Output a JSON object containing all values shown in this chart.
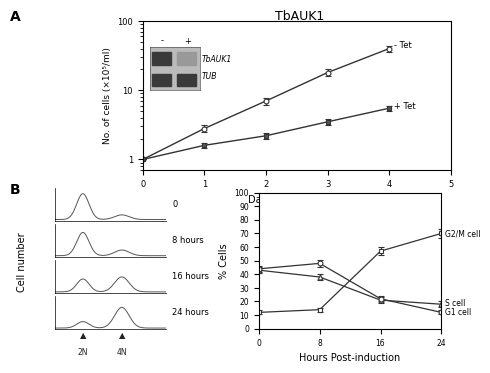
{
  "title_main": "TbAUK1",
  "panel_A_label": "A",
  "panel_B_label": "B",
  "growth_days": [
    0,
    1,
    2,
    3,
    4
  ],
  "growth_notet": [
    1.0,
    2.8,
    7.0,
    18.0,
    40.0
  ],
  "growth_notet_err": [
    0.0,
    0.3,
    0.8,
    2.0,
    4.0
  ],
  "growth_tet": [
    1.0,
    1.6,
    2.2,
    3.5,
    5.5
  ],
  "growth_tet_err": [
    0.0,
    0.15,
    0.25,
    0.4,
    0.5
  ],
  "growth_xlabel": "Days Post-induction",
  "growth_ylabel": "No. of cells (×10⁵/ml)",
  "growth_notet_label": "- Tet",
  "growth_tet_label": "+ Tet",
  "growth_xlim": [
    0,
    5
  ],
  "growth_ylim": [
    0.7,
    100
  ],
  "flow_hours": [
    0,
    8,
    16,
    24
  ],
  "g2m_values": [
    12,
    14,
    57,
    70
  ],
  "g2m_err": [
    1.5,
    1.5,
    3.0,
    3.0
  ],
  "s_values": [
    43,
    38,
    21,
    18
  ],
  "s_err": [
    2.0,
    2.0,
    2.0,
    2.0
  ],
  "g1_values": [
    44,
    48,
    22,
    12
  ],
  "g1_err": [
    2.0,
    2.5,
    2.0,
    1.5
  ],
  "flow_xlabel": "Hours Post-induction",
  "flow_ylabel": "% Cells",
  "g2m_label": "G2/M cell",
  "s_label": "S cell",
  "g1_label": "G1 cell",
  "flow_xlim": [
    0,
    24
  ],
  "flow_ylim": [
    0,
    100
  ],
  "wb_plus_label": "+",
  "wb_minus_label": "-",
  "wb_TbAUK1_label": "TbAUK1",
  "wb_TUB_label": "TUB",
  "facs_labels": [
    "0",
    "8 hours",
    "16 hours",
    "24 hours"
  ],
  "facs_2N_label": "2N",
  "facs_4N_label": "4N",
  "bg_color": "#ffffff"
}
